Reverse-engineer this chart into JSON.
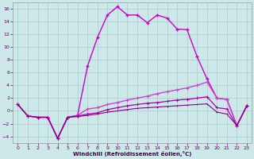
{
  "xlabel": "Windchill (Refroidissement éolien,°C)",
  "bg_color": "#cce8e8",
  "grid_color": "#aacccc",
  "xlim": [
    -0.5,
    23.5
  ],
  "ylim": [
    -5,
    17
  ],
  "xticks": [
    0,
    1,
    2,
    3,
    4,
    5,
    6,
    7,
    8,
    9,
    10,
    11,
    12,
    13,
    14,
    15,
    16,
    17,
    18,
    19,
    20,
    21,
    22,
    23
  ],
  "yticks": [
    -4,
    -2,
    0,
    2,
    4,
    6,
    8,
    10,
    12,
    14,
    16
  ],
  "series": [
    {
      "x": [
        0,
        1,
        2,
        3,
        4,
        5,
        6,
        7,
        8,
        9,
        10,
        11,
        12,
        13,
        14,
        15,
        16,
        17,
        18,
        19,
        20,
        21,
        22,
        23
      ],
      "y": [
        1,
        -0.8,
        -1,
        -1,
        -4.3,
        -1,
        -0.7,
        7,
        11.5,
        15,
        16.3,
        15,
        15,
        13.8,
        15,
        14.5,
        12.8,
        12.7,
        8.5,
        5,
        2,
        1.8,
        -2.3,
        0.8
      ],
      "color": "#cc00cc",
      "lw": 1.0,
      "marker": "+",
      "ms": 3.5,
      "mew": 1.0
    },
    {
      "x": [
        0,
        1,
        2,
        3,
        4,
        5,
        6,
        7,
        8,
        9,
        10,
        11,
        12,
        13,
        14,
        15,
        16,
        17,
        18,
        19,
        20,
        21,
        22,
        23
      ],
      "y": [
        1,
        -0.8,
        -1,
        -1,
        -4.3,
        -1,
        -0.7,
        0.3,
        0.5,
        1.0,
        1.3,
        1.7,
        2.0,
        2.3,
        2.7,
        3.0,
        3.3,
        3.6,
        4.0,
        4.5,
        2.0,
        1.8,
        -2.3,
        0.8
      ],
      "color": "#cc44cc",
      "lw": 1.0,
      "marker": "+",
      "ms": 3.0,
      "mew": 0.8
    },
    {
      "x": [
        0,
        1,
        2,
        3,
        4,
        5,
        6,
        7,
        8,
        9,
        10,
        11,
        12,
        13,
        14,
        15,
        16,
        17,
        18,
        19,
        20,
        21,
        22,
        23
      ],
      "y": [
        1,
        -0.8,
        -1,
        -1,
        -4.3,
        -1,
        -0.8,
        -0.5,
        -0.3,
        0.2,
        0.5,
        0.8,
        1.0,
        1.2,
        1.3,
        1.5,
        1.7,
        1.8,
        2.0,
        2.2,
        0.5,
        0.3,
        -2.3,
        0.8
      ],
      "color": "#aa00aa",
      "lw": 0.9,
      "marker": "+",
      "ms": 2.5,
      "mew": 0.7
    },
    {
      "x": [
        0,
        1,
        2,
        3,
        4,
        5,
        6,
        7,
        8,
        9,
        10,
        11,
        12,
        13,
        14,
        15,
        16,
        17,
        18,
        19,
        20,
        21,
        22,
        23
      ],
      "y": [
        1,
        -0.8,
        -1,
        -1,
        -4.3,
        -1,
        -0.9,
        -0.7,
        -0.5,
        -0.2,
        0.0,
        0.2,
        0.4,
        0.5,
        0.6,
        0.7,
        0.8,
        0.9,
        1.0,
        1.1,
        -0.2,
        -0.5,
        -2.3,
        0.8
      ],
      "color": "#880088",
      "lw": 0.8,
      "marker": "+",
      "ms": 2.0,
      "mew": 0.6
    }
  ]
}
